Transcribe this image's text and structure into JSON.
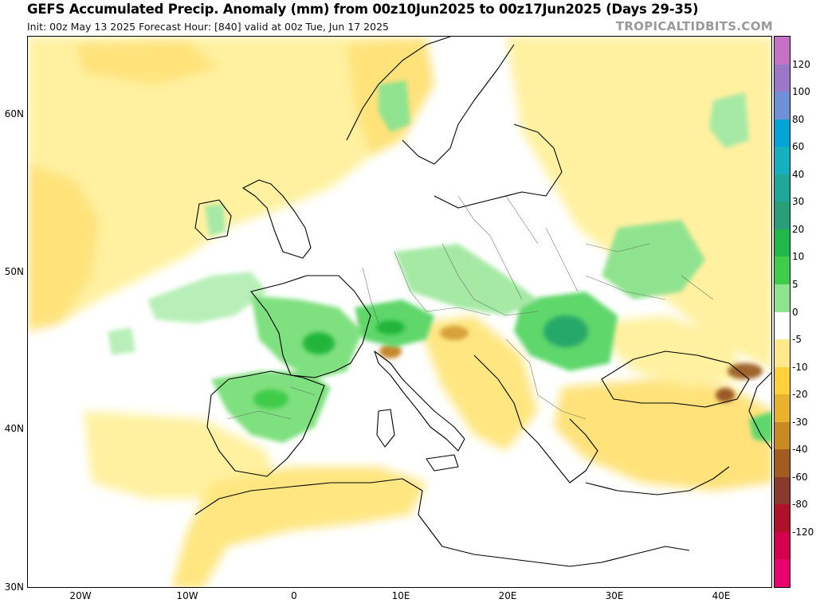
{
  "header": {
    "title": "GEFS Accumulated Precip. Anomaly (mm) from 00z10Jun2025 to 00z17Jun2025 (Days 29-35)",
    "subtitle": "Init: 00z May 13 2025   Forecast Hour: [840]   valid at 00z Tue, Jun 17 2025",
    "brand": "TROPICALTIDBITS.COM"
  },
  "map": {
    "lat_labels": [
      "60N",
      "50N",
      "40N",
      "30N"
    ],
    "lon_labels": [
      "20W",
      "10W",
      "0",
      "10E",
      "20E",
      "30E",
      "40E"
    ]
  },
  "colorbar": {
    "labels": [
      "120",
      "100",
      "80",
      "60",
      "40",
      "30",
      "20",
      "10",
      "5",
      "0",
      "-5",
      "-10",
      "-20",
      "-30",
      "-40",
      "-60",
      "-80",
      "-120"
    ],
    "colors": [
      "#c472c4",
      "#9b77c8",
      "#6f8fd6",
      "#00a5d6",
      "#15b0bd",
      "#1fa79c",
      "#27a07a",
      "#21b84a",
      "#3fcc4a",
      "#8fe38f",
      "#ffffff",
      "#ffe98a",
      "#ffd13a",
      "#e8b22d",
      "#c68b22",
      "#a35c20",
      "#8a3a2a",
      "#b0102a",
      "#d4004e",
      "#e8006e"
    ]
  },
  "colors": {
    "dry_light": "#fff5b0",
    "dry_mid": "#ffe680",
    "dry_strong": "#ffcf40",
    "dry_brown": "#b47a2a",
    "wet_light": "#b8efb8",
    "wet_mid": "#5fd76a",
    "wet_strong": "#22b53a"
  }
}
